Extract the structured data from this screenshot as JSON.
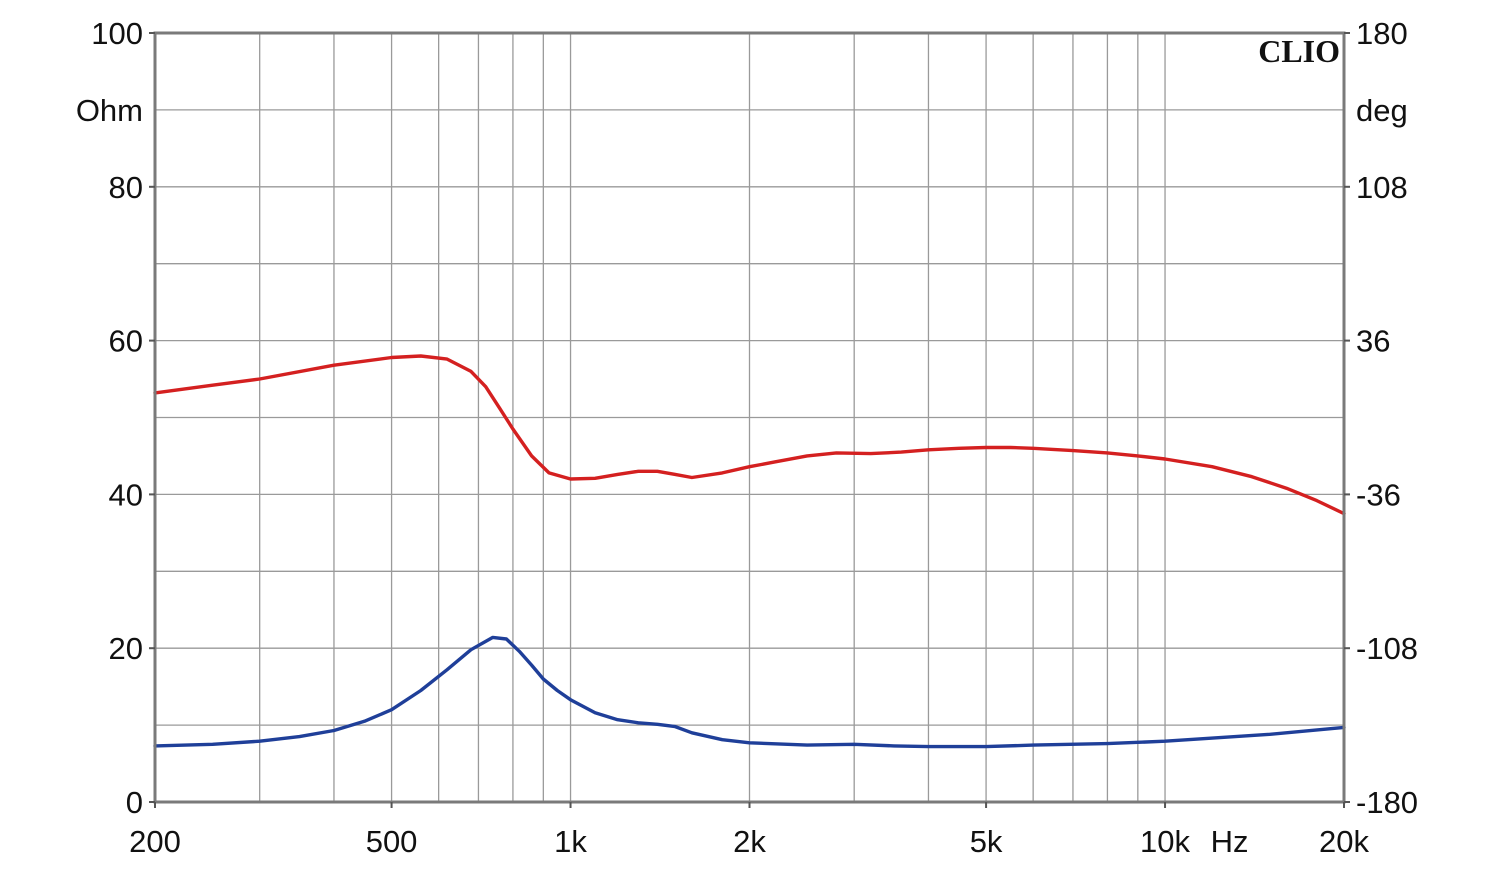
{
  "chart_data": {
    "type": "line",
    "brand": "CLIO",
    "x_scale": "log",
    "xlim": [
      200,
      20000
    ],
    "x_unit": "Hz",
    "x_ticks": [
      {
        "value": 200,
        "label": "200"
      },
      {
        "value": 500,
        "label": "500"
      },
      {
        "value": 1000,
        "label": "1k"
      },
      {
        "value": 2000,
        "label": "2k"
      },
      {
        "value": 5000,
        "label": "5k"
      },
      {
        "value": 10000,
        "label": "10k"
      },
      {
        "value": 20000,
        "label": "20k"
      }
    ],
    "x_grid": [
      200,
      300,
      400,
      500,
      600,
      700,
      800,
      900,
      1000,
      2000,
      3000,
      4000,
      5000,
      6000,
      7000,
      8000,
      9000,
      10000,
      20000
    ],
    "y_left": {
      "unit": "Ohm",
      "ylim": [
        0,
        100
      ],
      "ticks": [
        {
          "value": 0,
          "label": "0"
        },
        {
          "value": 20,
          "label": "20"
        },
        {
          "value": 40,
          "label": "40"
        },
        {
          "value": 60,
          "label": "60"
        },
        {
          "value": 80,
          "label": "80"
        },
        {
          "value": 100,
          "label": "100"
        }
      ]
    },
    "y_right": {
      "unit": "deg",
      "ylim": [
        -180,
        180
      ],
      "ticks": [
        {
          "value": -180,
          "label": "-180"
        },
        {
          "value": -108,
          "label": "-108"
        },
        {
          "value": -36,
          "label": "-36"
        },
        {
          "value": 36,
          "label": "36"
        },
        {
          "value": 108,
          "label": "108"
        },
        {
          "value": 180,
          "label": "180"
        }
      ]
    },
    "y_grid_step": 10,
    "grid": true,
    "series": [
      {
        "color": "#d42020",
        "x": [
          200,
          250,
          300,
          400,
          500,
          560,
          620,
          680,
          720,
          760,
          800,
          860,
          920,
          1000,
          1100,
          1200,
          1300,
          1400,
          1500,
          1600,
          1800,
          2000,
          2200,
          2500,
          2800,
          3200,
          3600,
          4000,
          4500,
          5000,
          5500,
          6000,
          7000,
          8000,
          9000,
          10000,
          12000,
          14000,
          16000,
          18000,
          20000
        ],
        "values": [
          53.2,
          54.2,
          55.0,
          56.8,
          57.8,
          58.0,
          57.6,
          56.0,
          54.0,
          51.2,
          48.5,
          45.0,
          42.8,
          42.0,
          42.1,
          42.6,
          43.0,
          43.0,
          42.6,
          42.2,
          42.8,
          43.6,
          44.2,
          45.0,
          45.4,
          45.3,
          45.5,
          45.8,
          46.0,
          46.1,
          46.1,
          46.0,
          45.7,
          45.4,
          45.0,
          44.6,
          43.6,
          42.3,
          40.8,
          39.2,
          37.5
        ]
      },
      {
        "color": "#1f3f99",
        "x": [
          200,
          250,
          300,
          350,
          400,
          450,
          500,
          560,
          620,
          680,
          740,
          780,
          820,
          860,
          900,
          950,
          1000,
          1100,
          1200,
          1300,
          1400,
          1500,
          1600,
          1800,
          2000,
          2500,
          3000,
          3500,
          4000,
          5000,
          6000,
          8000,
          10000,
          15000,
          20000
        ],
        "values": [
          7.3,
          7.5,
          7.9,
          8.5,
          9.3,
          10.5,
          12.0,
          14.5,
          17.2,
          19.8,
          21.4,
          21.2,
          19.6,
          17.8,
          16.0,
          14.5,
          13.3,
          11.6,
          10.7,
          10.3,
          10.1,
          9.8,
          9.0,
          8.1,
          7.7,
          7.4,
          7.5,
          7.3,
          7.2,
          7.2,
          7.4,
          7.6,
          7.9,
          8.8,
          9.7
        ]
      }
    ]
  }
}
